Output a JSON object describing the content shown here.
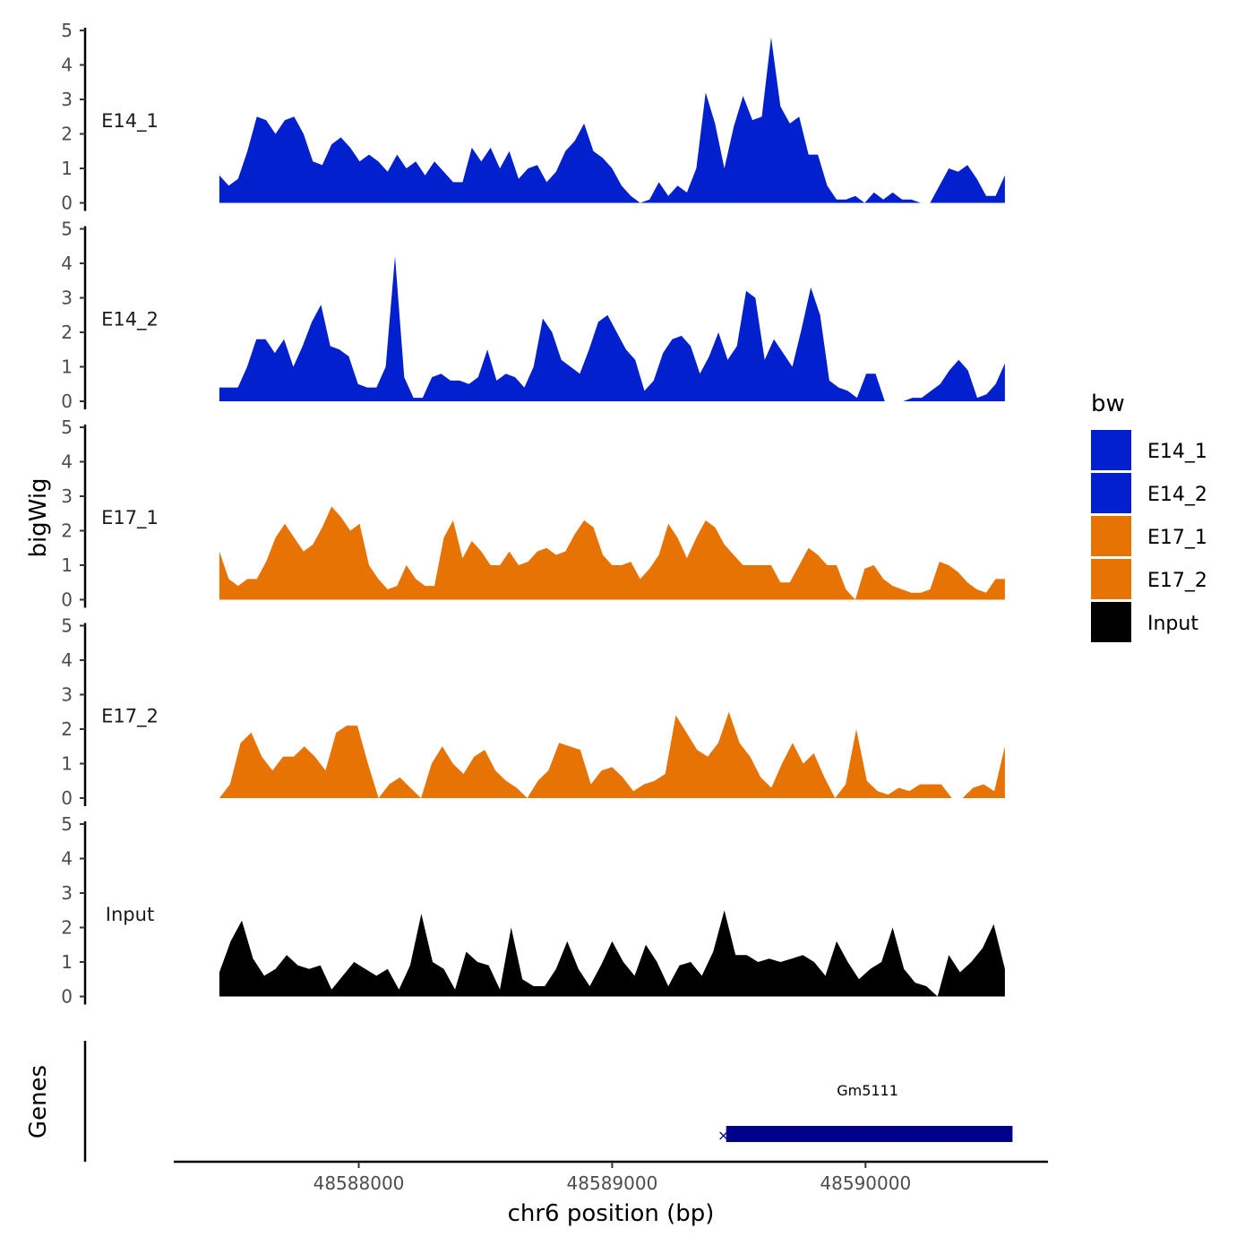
{
  "chart_data": {
    "type": "area",
    "x_axis": {
      "title": "chr6 position (bp)",
      "range": [
        48587270,
        48590720
      ],
      "ticks": [
        48588000,
        48589000,
        48590000
      ],
      "tick_labels": [
        "48588000",
        "48589000",
        "48590000"
      ]
    },
    "y_axis": {
      "title": "bigWig",
      "range": [
        0,
        5
      ],
      "ticks": [
        0,
        1,
        2,
        3,
        4,
        5
      ],
      "tick_labels": [
        "0",
        "1",
        "2",
        "3",
        "4",
        "5"
      ]
    },
    "data_x_start": 48587450,
    "data_x_end": 48590550,
    "series": [
      {
        "name": "E14_1",
        "color": "#0320CF",
        "values": [
          0.8,
          0.5,
          0.7,
          1.5,
          2.5,
          2.4,
          2.0,
          2.4,
          2.5,
          2.0,
          1.2,
          1.1,
          1.7,
          1.9,
          1.6,
          1.2,
          1.4,
          1.2,
          0.9,
          1.4,
          1.0,
          1.2,
          0.8,
          1.2,
          0.9,
          0.6,
          0.6,
          1.6,
          1.2,
          1.6,
          1.0,
          1.5,
          0.7,
          1.0,
          1.1,
          0.6,
          0.9,
          1.5,
          1.8,
          2.3,
          1.5,
          1.3,
          1.0,
          0.5,
          0.2,
          0.0,
          0.1,
          0.6,
          0.2,
          0.5,
          0.3,
          1.0,
          3.2,
          2.3,
          1.0,
          2.2,
          3.1,
          2.4,
          2.5,
          4.8,
          2.8,
          2.3,
          2.5,
          1.4,
          1.4,
          0.5,
          0.1,
          0.1,
          0.2,
          0.0,
          0.3,
          0.1,
          0.3,
          0.1,
          0.1,
          0.0,
          0.0,
          0.5,
          1.0,
          0.9,
          1.1,
          0.7,
          0.2,
          0.2,
          0.8
        ]
      },
      {
        "name": "E14_2",
        "color": "#0320CF",
        "values": [
          0.4,
          0.4,
          0.4,
          1.0,
          1.8,
          1.8,
          1.4,
          1.8,
          1.0,
          1.6,
          2.3,
          2.8,
          1.6,
          1.5,
          1.3,
          0.5,
          0.4,
          0.4,
          1.0,
          4.2,
          0.7,
          0.1,
          0.1,
          0.7,
          0.8,
          0.6,
          0.6,
          0.5,
          0.7,
          1.5,
          0.6,
          0.8,
          0.7,
          0.4,
          1.0,
          2.4,
          2.0,
          1.2,
          1.0,
          0.8,
          1.5,
          2.3,
          2.5,
          2.0,
          1.5,
          1.2,
          0.3,
          0.6,
          1.4,
          1.8,
          1.9,
          1.6,
          0.8,
          1.3,
          2.0,
          1.2,
          1.6,
          3.2,
          3.0,
          1.2,
          1.8,
          1.4,
          1.0,
          2.1,
          3.3,
          2.5,
          0.6,
          0.4,
          0.3,
          0.1,
          0.8,
          0.8,
          0.0,
          0.0,
          0.0,
          0.1,
          0.1,
          0.3,
          0.5,
          0.9,
          1.2,
          0.9,
          0.1,
          0.2,
          0.5,
          1.1
        ]
      },
      {
        "name": "E17_1",
        "color": "#E87305",
        "values": [
          1.4,
          0.6,
          0.4,
          0.6,
          0.6,
          1.1,
          1.8,
          2.2,
          1.8,
          1.4,
          1.6,
          2.1,
          2.7,
          2.4,
          2.0,
          2.2,
          1.0,
          0.6,
          0.3,
          0.4,
          1.0,
          0.6,
          0.4,
          0.4,
          1.8,
          2.3,
          1.2,
          1.7,
          1.4,
          1.0,
          1.0,
          1.4,
          1.0,
          1.1,
          1.4,
          1.5,
          1.3,
          1.4,
          1.9,
          2.3,
          2.1,
          1.3,
          1.0,
          1.0,
          1.1,
          0.6,
          0.9,
          1.3,
          2.2,
          1.8,
          1.2,
          1.8,
          2.3,
          2.1,
          1.6,
          1.3,
          1.0,
          1.0,
          1.0,
          1.0,
          0.5,
          0.5,
          1.0,
          1.5,
          1.3,
          1.0,
          1.0,
          0.3,
          0.0,
          0.9,
          1.0,
          0.6,
          0.4,
          0.3,
          0.2,
          0.2,
          0.3,
          1.1,
          1.0,
          0.8,
          0.5,
          0.3,
          0.2,
          0.6,
          0.6
        ]
      },
      {
        "name": "E17_2",
        "color": "#E87305",
        "values": [
          0.0,
          0.4,
          1.6,
          1.9,
          1.2,
          0.8,
          1.2,
          1.2,
          1.5,
          1.2,
          0.8,
          1.9,
          2.1,
          2.1,
          1.0,
          0.0,
          0.4,
          0.6,
          0.3,
          0.0,
          1.0,
          1.5,
          1.0,
          0.7,
          1.2,
          1.4,
          0.8,
          0.5,
          0.3,
          0.0,
          0.5,
          0.8,
          1.6,
          1.5,
          1.4,
          0.4,
          0.8,
          0.9,
          0.6,
          0.2,
          0.4,
          0.5,
          0.7,
          2.4,
          1.9,
          1.4,
          1.2,
          1.6,
          2.5,
          1.6,
          1.2,
          0.6,
          0.3,
          1.0,
          1.6,
          1.0,
          1.3,
          0.6,
          0.0,
          0.4,
          2.0,
          0.5,
          0.2,
          0.1,
          0.3,
          0.2,
          0.4,
          0.4,
          0.4,
          0.0,
          0.0,
          0.3,
          0.4,
          0.2,
          1.5
        ]
      },
      {
        "name": "Input",
        "color": "#000000",
        "values": [
          0.7,
          1.6,
          2.2,
          1.1,
          0.6,
          0.8,
          1.2,
          0.9,
          0.8,
          0.9,
          0.2,
          0.6,
          1.0,
          0.8,
          0.6,
          0.8,
          0.2,
          0.9,
          2.4,
          1.0,
          0.8,
          0.2,
          1.3,
          1.0,
          0.9,
          0.2,
          2.0,
          0.5,
          0.3,
          0.3,
          0.8,
          1.6,
          0.8,
          0.3,
          0.9,
          1.6,
          1.0,
          0.6,
          1.5,
          1.0,
          0.3,
          0.9,
          1.0,
          0.6,
          1.3,
          2.5,
          1.2,
          1.2,
          1.0,
          1.1,
          1.0,
          1.1,
          1.2,
          1.0,
          0.6,
          1.6,
          1.0,
          0.5,
          0.8,
          1.0,
          2.0,
          0.8,
          0.4,
          0.3,
          0.0,
          1.2,
          0.7,
          1.0,
          1.4,
          2.1,
          0.8
        ]
      }
    ],
    "genes_track": {
      "title": "Genes",
      "genes": [
        {
          "name": "Gm5111",
          "start": 48589450,
          "end": 48590580,
          "strand": "-",
          "color": "#00008B"
        }
      ]
    },
    "legend": {
      "title": "bw",
      "position": "right",
      "entries": [
        {
          "label": "E14_1",
          "color": "#0320CF"
        },
        {
          "label": "E14_2",
          "color": "#0320CF"
        },
        {
          "label": "E17_1",
          "color": "#E87305"
        },
        {
          "label": "E17_2",
          "color": "#E87305"
        },
        {
          "label": "Input",
          "color": "#000000"
        }
      ]
    }
  }
}
